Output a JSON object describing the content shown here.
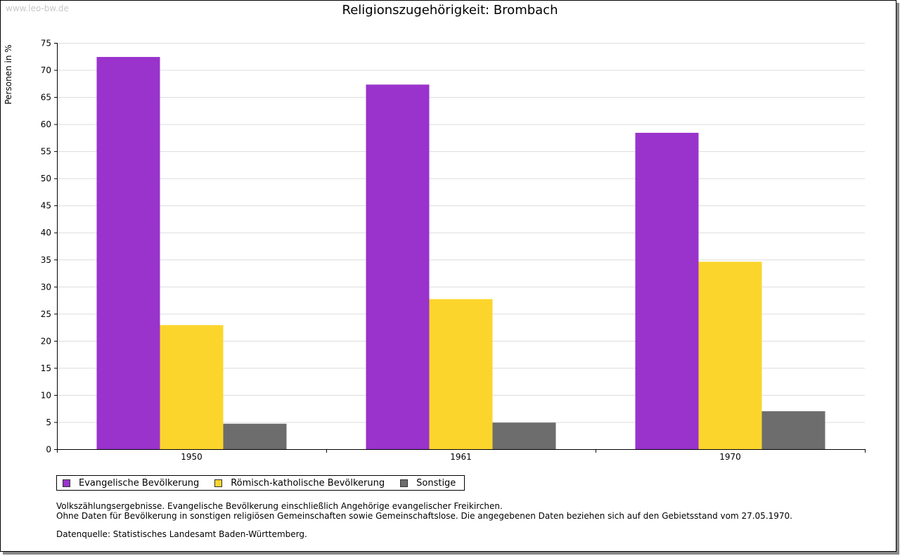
{
  "watermark": "www.leo-bw.de",
  "chart_data": {
    "type": "bar",
    "title": "Religionszugehörigkeit: Brombach",
    "xlabel": "",
    "ylabel": "Personen in %",
    "ylim": [
      0,
      75
    ],
    "yticks": [
      0,
      5,
      10,
      15,
      20,
      25,
      30,
      35,
      40,
      45,
      50,
      55,
      60,
      65,
      70,
      75
    ],
    "grid": true,
    "legend_position": "bottom-left",
    "categories": [
      "1950",
      "1961",
      "1970"
    ],
    "series": [
      {
        "name": "Evangelische Bevölkerung",
        "color": "#9933cc",
        "values": [
          72.4,
          67.3,
          58.4
        ]
      },
      {
        "name": "Römisch-katholische Bevölkerung",
        "color": "#fcd52c",
        "values": [
          22.9,
          27.7,
          34.6
        ]
      },
      {
        "name": "Sonstige",
        "color": "#6d6d6d",
        "values": [
          4.7,
          4.9,
          7.0
        ]
      }
    ]
  },
  "notes": {
    "line1": "Volkszählungsergebnisse. Evangelische Bevölkerung einschließlich Angehörige evangelischer Freikirchen.",
    "line2": "Ohne Daten für Bevölkerung in sonstigen religiösen Gemeinschaften sowie Gemeinschaftslose. Die angegebenen Daten beziehen sich auf den Gebietsstand vom 27.05.1970.",
    "source": "Datenquelle: Statistisches Landesamt Baden-Württemberg."
  }
}
